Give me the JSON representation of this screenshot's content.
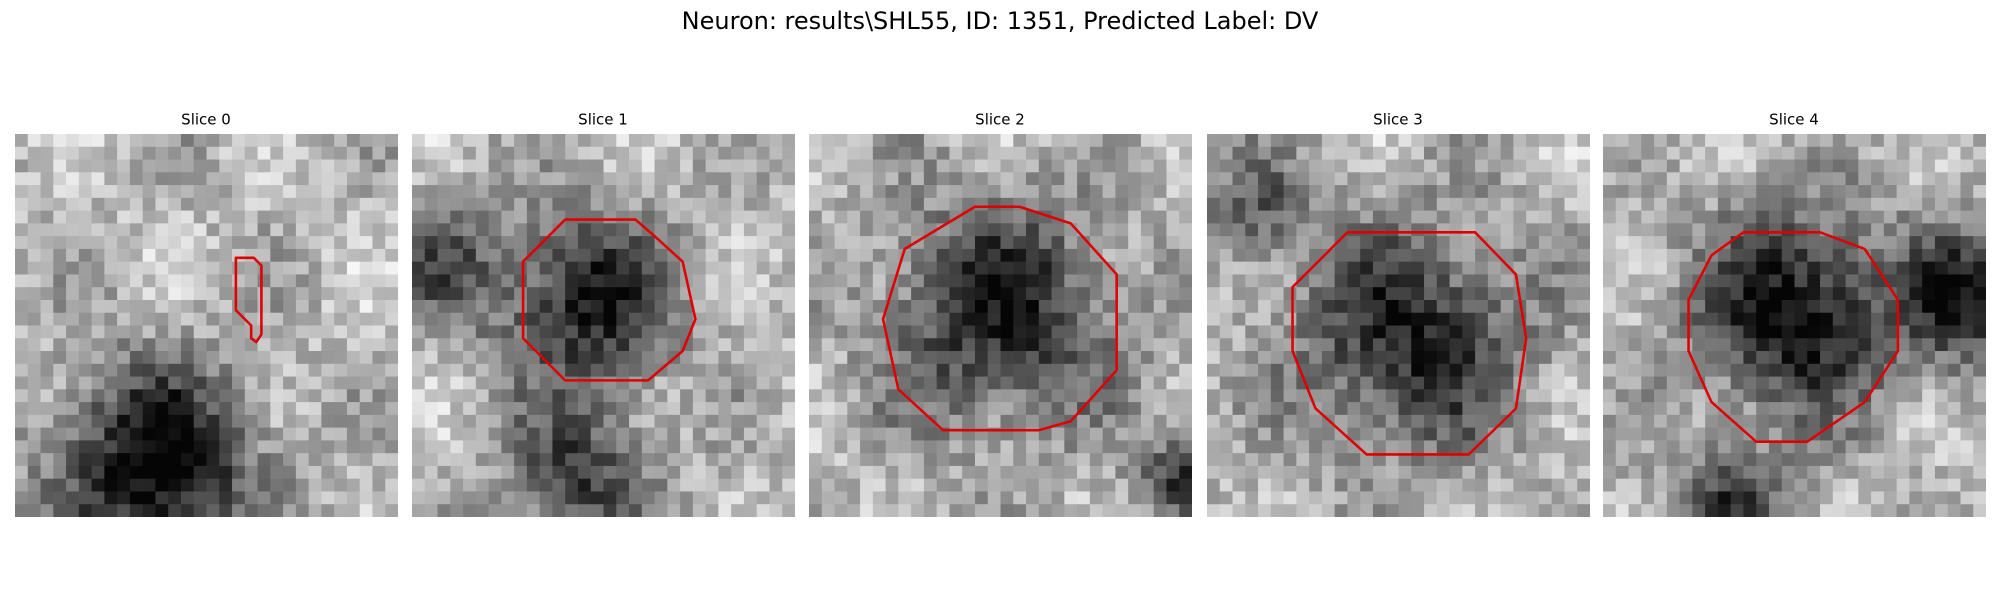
{
  "title": "Neuron: results\\SHL55, ID: 1351, Predicted Label: DV",
  "panels": [
    {
      "title": "Slice 0"
    },
    {
      "title": "Slice 1"
    },
    {
      "title": "Slice 2"
    },
    {
      "title": "Slice 3"
    },
    {
      "title": "Slice 4"
    }
  ]
}
